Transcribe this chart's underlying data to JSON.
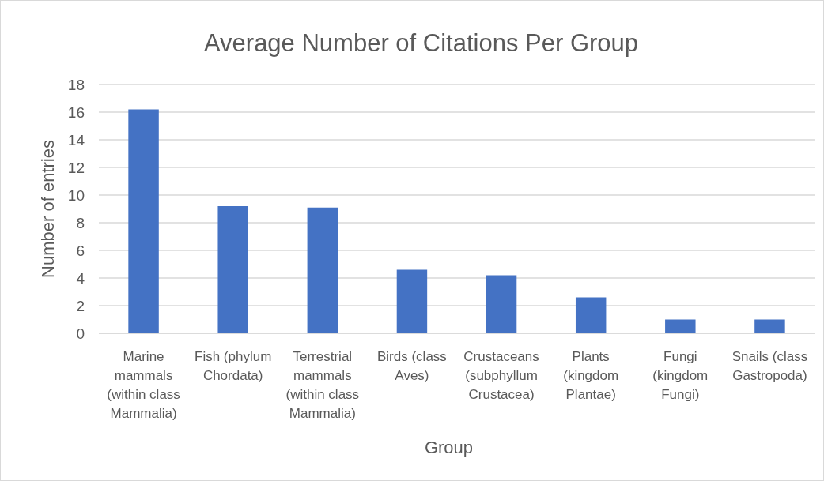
{
  "chart_data": {
    "type": "bar",
    "title": "Average Number of Citations Per Group",
    "xlabel": "Group",
    "ylabel": "Number of entries",
    "categories": [
      "Marine mammals (within class Mammalia)",
      "Fish (phylum Chordata)",
      "Terrestrial mammals (within class Mammalia)",
      "Birds (class Aves)",
      "Crustaceans (subphyllum Crustacea)",
      "Plants (kingdom Plantae)",
      "Fungi (kingdom Fungi)",
      "Snails (class Gastropoda)"
    ],
    "values": [
      16.2,
      9.2,
      9.1,
      4.6,
      4.2,
      2.6,
      1,
      1
    ],
    "color": "#4472c4",
    "ylim": [
      0,
      18
    ],
    "yticks": [
      0,
      2,
      4,
      6,
      8,
      10,
      12,
      14,
      16,
      18
    ],
    "grid": "y"
  }
}
